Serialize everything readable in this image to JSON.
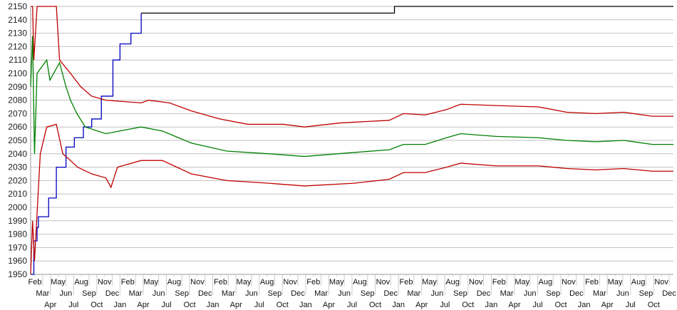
{
  "chart_data": {
    "type": "line",
    "title": "",
    "xlabel": "",
    "ylabel": "",
    "ylim": [
      1950,
      2150
    ],
    "xlim": [
      0,
      100
    ],
    "yticks": [
      1950,
      1960,
      1970,
      1980,
      1990,
      2000,
      2010,
      2020,
      2030,
      2040,
      2050,
      2060,
      2070,
      2080,
      2090,
      2100,
      2110,
      2120,
      2130,
      2140,
      2150
    ],
    "grid": "horizontal",
    "legend": "none",
    "xtick_labels": [
      "Feb",
      "Mar",
      "Apr",
      "May",
      "Jun",
      "Jul",
      "Aug",
      "Sep",
      "Oct",
      "Nov",
      "Dec",
      "Jan",
      "Feb",
      "Mar",
      "Apr",
      "May",
      "Jun",
      "Jul",
      "Aug",
      "Sep",
      "Oct",
      "Nov",
      "Dec",
      "Jan",
      "Feb",
      "Mar",
      "Apr",
      "May",
      "Jun",
      "Jul",
      "Aug",
      "Sep",
      "Oct",
      "Nov",
      "Dec",
      "Jan",
      "Feb",
      "Mar",
      "Apr",
      "May",
      "Jun",
      "Jul",
      "Aug",
      "Sep",
      "Oct",
      "Nov",
      "Dec",
      "Jan",
      "Feb",
      "Mar",
      "Apr",
      "May",
      "Jun",
      "Jul",
      "Aug",
      "Sep",
      "Oct",
      "Nov",
      "Dec",
      "Jan",
      "Feb",
      "Mar",
      "Apr",
      "May",
      "Jun",
      "Jul",
      "Aug",
      "Sep",
      "Oct",
      "Nov",
      "Dec",
      "Jan",
      "Feb",
      "Mar",
      "Apr",
      "May",
      "Jun",
      "Jul",
      "Aug",
      "Sep",
      "Oct",
      "Nov",
      "Dec"
    ],
    "series": [
      {
        "color": "#0000c0",
        "step": true,
        "points": [
          [
            0,
            1950
          ],
          [
            0.5,
            1975
          ],
          [
            1,
            1985
          ],
          [
            1.2,
            1993
          ],
          [
            2.3,
            1993
          ],
          [
            2.8,
            2007
          ],
          [
            4,
            2030
          ],
          [
            5.5,
            2045
          ],
          [
            6.8,
            2052
          ],
          [
            8.2,
            2060
          ],
          [
            9.5,
            2066
          ],
          [
            11,
            2083
          ],
          [
            12.8,
            2110
          ],
          [
            13.9,
            2122
          ],
          [
            15.6,
            2130
          ],
          [
            17.2,
            2145
          ]
        ]
      },
      {
        "color": "#000000",
        "step": true,
        "points": [
          [
            17.2,
            2145
          ],
          [
            56.4,
            2145
          ],
          [
            56.6,
            2150
          ],
          [
            100,
            2150
          ]
        ]
      },
      {
        "color": "#c00000",
        "points": [
          [
            0,
            2150
          ],
          [
            0.3,
            2150
          ],
          [
            0.5,
            2110
          ],
          [
            1,
            2150
          ],
          [
            4,
            2150
          ],
          [
            4.5,
            2110
          ],
          [
            6.2,
            2100
          ],
          [
            7.8,
            2090
          ],
          [
            9.5,
            2083
          ],
          [
            11.7,
            2080
          ],
          [
            17.2,
            2078
          ],
          [
            18.3,
            2080
          ],
          [
            21.6,
            2078
          ],
          [
            25,
            2072
          ],
          [
            29.4,
            2066
          ],
          [
            33.8,
            2062
          ],
          [
            39.3,
            2062
          ],
          [
            42.6,
            2060
          ],
          [
            48.1,
            2063
          ],
          [
            55.8,
            2065
          ],
          [
            58,
            2070
          ],
          [
            61.4,
            2069
          ],
          [
            64.7,
            2073
          ],
          [
            66.9,
            2077
          ],
          [
            72.4,
            2076
          ],
          [
            79,
            2075
          ],
          [
            83.4,
            2071
          ],
          [
            87.9,
            2070
          ],
          [
            92.3,
            2071
          ],
          [
            96.7,
            2068
          ],
          [
            100,
            2068
          ]
        ]
      },
      {
        "color": "#008000",
        "points": [
          [
            0,
            2090
          ],
          [
            0.3,
            2128
          ],
          [
            0.6,
            2040
          ],
          [
            1,
            2100
          ],
          [
            2.5,
            2110
          ],
          [
            3,
            2095
          ],
          [
            4.5,
            2108
          ],
          [
            5.5,
            2090
          ],
          [
            6.2,
            2080
          ],
          [
            7.2,
            2070
          ],
          [
            8.5,
            2060
          ],
          [
            11.7,
            2055
          ],
          [
            14.9,
            2058
          ],
          [
            17.2,
            2060
          ],
          [
            20.5,
            2057
          ],
          [
            25,
            2048
          ],
          [
            30.5,
            2042
          ],
          [
            37.1,
            2040
          ],
          [
            42.6,
            2038
          ],
          [
            50.3,
            2041
          ],
          [
            55.8,
            2043
          ],
          [
            58,
            2047
          ],
          [
            61.4,
            2047
          ],
          [
            64.7,
            2052
          ],
          [
            66.9,
            2055
          ],
          [
            72.4,
            2053
          ],
          [
            79,
            2052
          ],
          [
            83.4,
            2050
          ],
          [
            87.9,
            2049
          ],
          [
            92.3,
            2050
          ],
          [
            96.7,
            2047
          ],
          [
            100,
            2047
          ]
        ]
      },
      {
        "color": "#c00000",
        "points": [
          [
            0,
            1950
          ],
          [
            0.3,
            1990
          ],
          [
            0.6,
            1960
          ],
          [
            1.5,
            2040
          ],
          [
            2.5,
            2060
          ],
          [
            4,
            2062
          ],
          [
            5,
            2040
          ],
          [
            6.2,
            2035
          ],
          [
            7.3,
            2030
          ],
          [
            9.5,
            2025
          ],
          [
            11.7,
            2022
          ],
          [
            12.5,
            2015
          ],
          [
            13.5,
            2030
          ],
          [
            17.2,
            2035
          ],
          [
            20.5,
            2035
          ],
          [
            25,
            2025
          ],
          [
            30.5,
            2020
          ],
          [
            37.1,
            2018
          ],
          [
            42.6,
            2016
          ],
          [
            50.3,
            2018
          ],
          [
            55.8,
            2021
          ],
          [
            58,
            2026
          ],
          [
            61.4,
            2026
          ],
          [
            64.7,
            2030
          ],
          [
            66.9,
            2033
          ],
          [
            72.4,
            2031
          ],
          [
            79,
            2031
          ],
          [
            83.4,
            2029
          ],
          [
            87.9,
            2028
          ],
          [
            92.3,
            2029
          ],
          [
            96.7,
            2027
          ],
          [
            100,
            2027
          ]
        ]
      }
    ]
  }
}
